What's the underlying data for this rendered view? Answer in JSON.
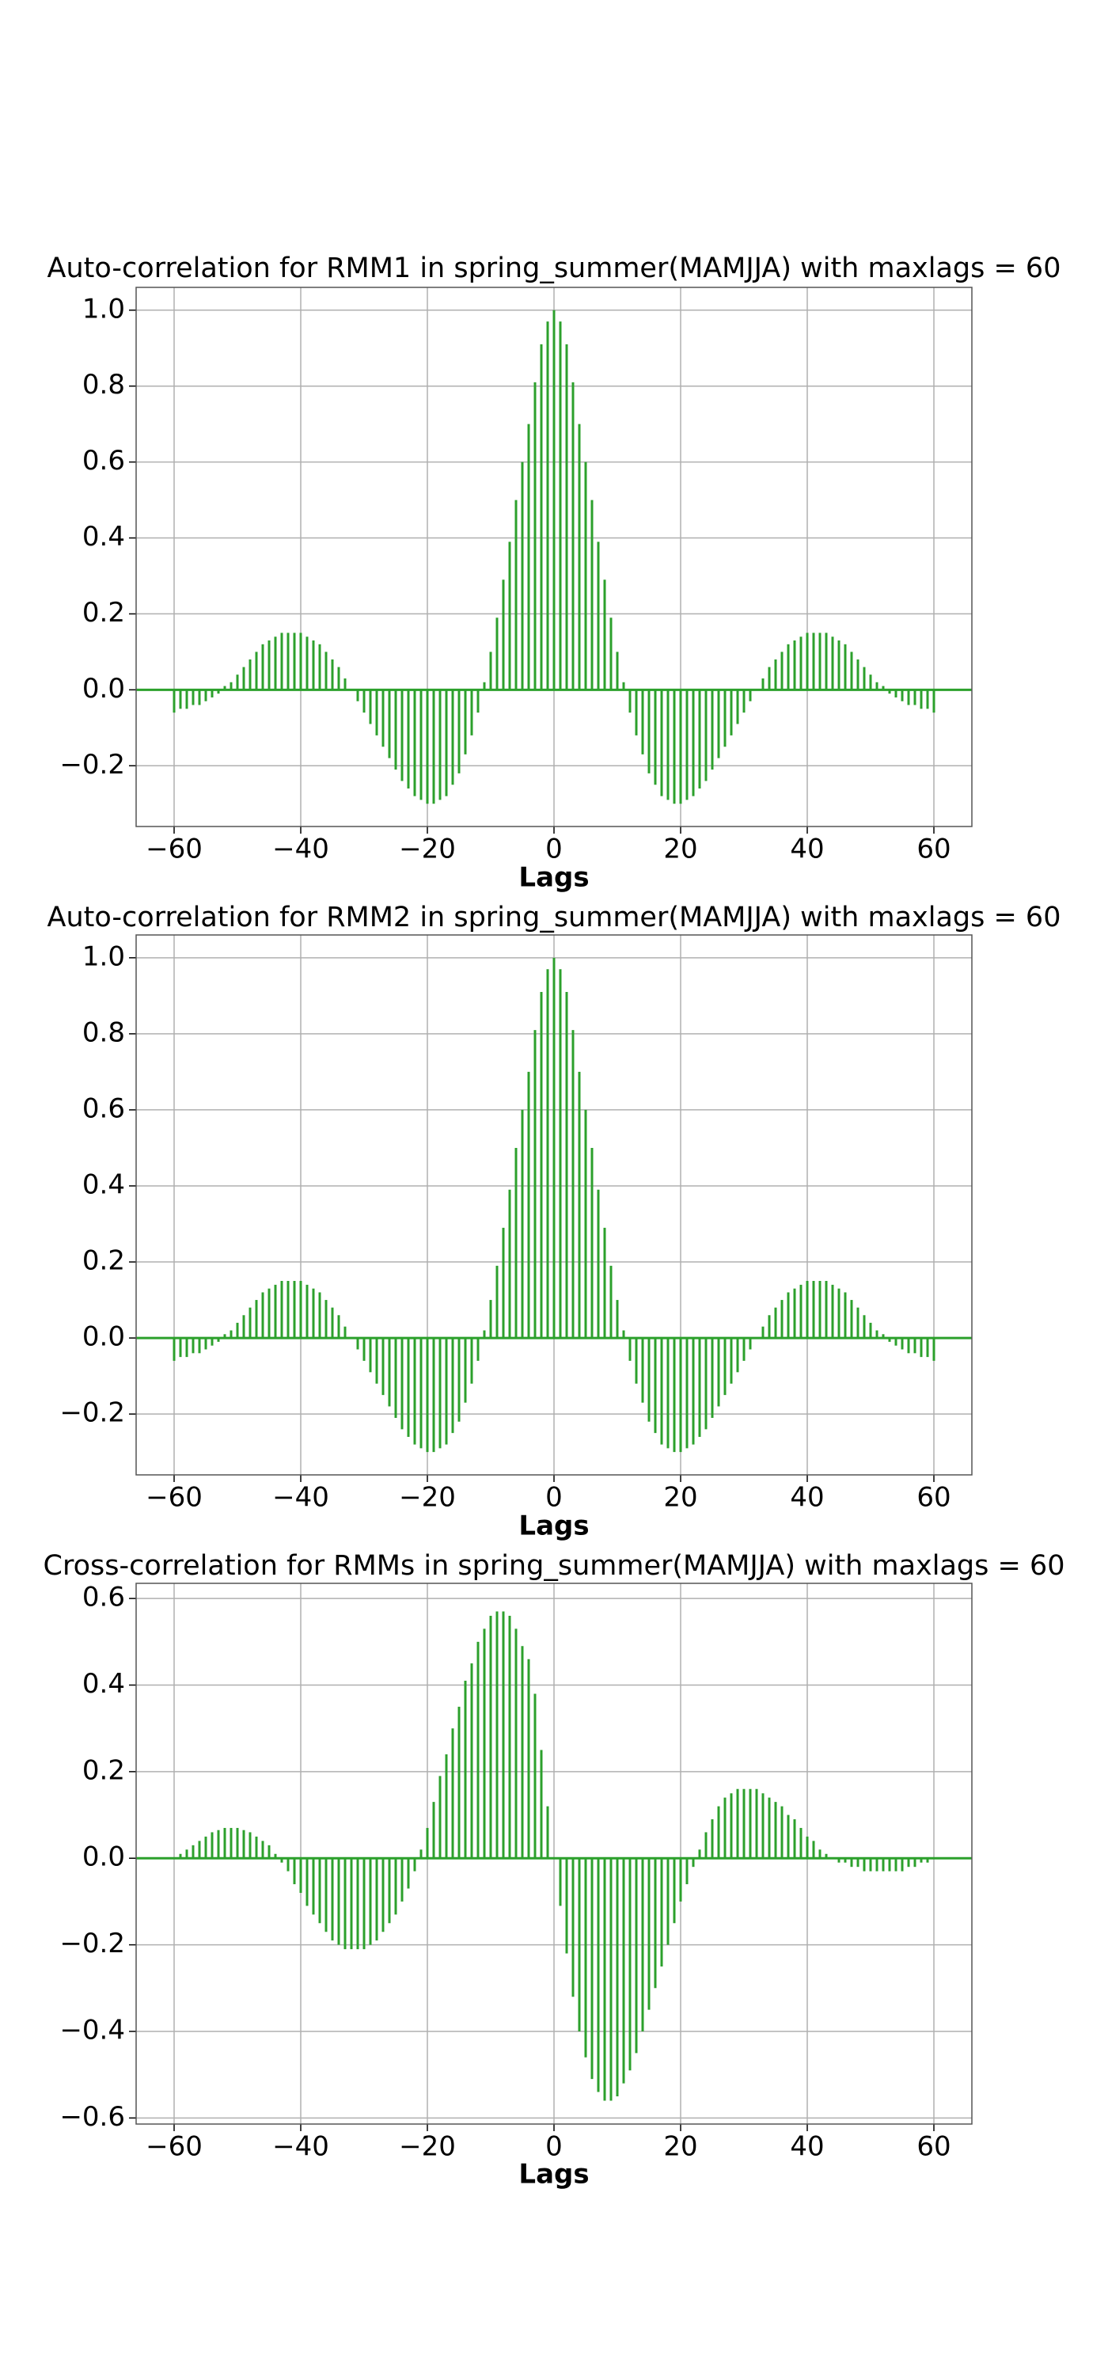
{
  "chart_data": [
    {
      "type": "stem",
      "title": "Auto-correlation for RMM1 in spring_summer(MAMJJA) with maxlags = 60",
      "xlabel": "Lags",
      "color": "#2ca02c",
      "grid": true,
      "xlim": [
        -66,
        66
      ],
      "ylim": [
        -0.36,
        1.06
      ],
      "xticks": [
        {
          "value": -60,
          "label": "−60"
        },
        {
          "value": -40,
          "label": "−40"
        },
        {
          "value": -20,
          "label": "−20"
        },
        0,
        20,
        40,
        60
      ],
      "yticks": [
        {
          "value": -0.2,
          "label": "−0.2"
        },
        {
          "value": 0,
          "label": "0.0"
        },
        0.2,
        0.4,
        0.6,
        0.8,
        {
          "value": 1,
          "label": "1.0"
        }
      ],
      "x": [
        -60,
        -59,
        -58,
        -57,
        -56,
        -55,
        -54,
        -53,
        -52,
        -51,
        -50,
        -49,
        -48,
        -47,
        -46,
        -45,
        -44,
        -43,
        -42,
        -41,
        -40,
        -39,
        -38,
        -37,
        -36,
        -35,
        -34,
        -33,
        -32,
        -31,
        -30,
        -29,
        -28,
        -27,
        -26,
        -25,
        -24,
        -23,
        -22,
        -21,
        -20,
        -19,
        -18,
        -17,
        -16,
        -15,
        -14,
        -13,
        -12,
        -11,
        -10,
        -9,
        -8,
        -7,
        -6,
        -5,
        -4,
        -3,
        -2,
        -1,
        0,
        1,
        2,
        3,
        4,
        5,
        6,
        7,
        8,
        9,
        10,
        11,
        12,
        13,
        14,
        15,
        16,
        17,
        18,
        19,
        20,
        21,
        22,
        23,
        24,
        25,
        26,
        27,
        28,
        29,
        30,
        31,
        32,
        33,
        34,
        35,
        36,
        37,
        38,
        39,
        40,
        41,
        42,
        43,
        44,
        45,
        46,
        47,
        48,
        49,
        50,
        51,
        52,
        53,
        54,
        55,
        56,
        57,
        58,
        59,
        60
      ],
      "values": [
        -0.06,
        -0.05,
        -0.05,
        -0.04,
        -0.04,
        -0.03,
        -0.02,
        -0.01,
        0.01,
        0.02,
        0.04,
        0.06,
        0.08,
        0.1,
        0.12,
        0.13,
        0.14,
        0.15,
        0.15,
        0.15,
        0.15,
        0.14,
        0.13,
        0.12,
        0.1,
        0.08,
        0.06,
        0.03,
        0.0,
        -0.03,
        -0.06,
        -0.09,
        -0.12,
        -0.15,
        -0.18,
        -0.21,
        -0.24,
        -0.26,
        -0.28,
        -0.29,
        -0.3,
        -0.3,
        -0.29,
        -0.28,
        -0.25,
        -0.22,
        -0.17,
        -0.12,
        -0.06,
        0.02,
        0.1,
        0.19,
        0.29,
        0.39,
        0.5,
        0.6,
        0.7,
        0.81,
        0.91,
        0.97,
        1.0,
        0.97,
        0.91,
        0.81,
        0.7,
        0.6,
        0.5,
        0.39,
        0.29,
        0.19,
        0.1,
        0.02,
        -0.06,
        -0.12,
        -0.17,
        -0.22,
        -0.25,
        -0.28,
        -0.29,
        -0.3,
        -0.3,
        -0.29,
        -0.28,
        -0.26,
        -0.24,
        -0.21,
        -0.18,
        -0.15,
        -0.12,
        -0.09,
        -0.06,
        -0.03,
        0.0,
        0.03,
        0.06,
        0.08,
        0.1,
        0.12,
        0.13,
        0.14,
        0.15,
        0.15,
        0.15,
        0.15,
        0.14,
        0.13,
        0.12,
        0.1,
        0.08,
        0.06,
        0.04,
        0.02,
        0.01,
        -0.01,
        -0.02,
        -0.03,
        -0.04,
        -0.04,
        -0.05,
        -0.05,
        -0.06
      ]
    },
    {
      "type": "stem",
      "title": "Auto-correlation for RMM2 in spring_summer(MAMJJA) with maxlags = 60",
      "xlabel": "Lags",
      "color": "#2ca02c",
      "grid": true,
      "xlim": [
        -66,
        66
      ],
      "ylim": [
        -0.36,
        1.06
      ],
      "xticks": [
        {
          "value": -60,
          "label": "−60"
        },
        {
          "value": -40,
          "label": "−40"
        },
        {
          "value": -20,
          "label": "−20"
        },
        0,
        20,
        40,
        60
      ],
      "yticks": [
        {
          "value": -0.2,
          "label": "−0.2"
        },
        {
          "value": 0,
          "label": "0.0"
        },
        0.2,
        0.4,
        0.6,
        0.8,
        {
          "value": 1,
          "label": "1.0"
        }
      ],
      "x": [
        -60,
        -59,
        -58,
        -57,
        -56,
        -55,
        -54,
        -53,
        -52,
        -51,
        -50,
        -49,
        -48,
        -47,
        -46,
        -45,
        -44,
        -43,
        -42,
        -41,
        -40,
        -39,
        -38,
        -37,
        -36,
        -35,
        -34,
        -33,
        -32,
        -31,
        -30,
        -29,
        -28,
        -27,
        -26,
        -25,
        -24,
        -23,
        -22,
        -21,
        -20,
        -19,
        -18,
        -17,
        -16,
        -15,
        -14,
        -13,
        -12,
        -11,
        -10,
        -9,
        -8,
        -7,
        -6,
        -5,
        -4,
        -3,
        -2,
        -1,
        0,
        1,
        2,
        3,
        4,
        5,
        6,
        7,
        8,
        9,
        10,
        11,
        12,
        13,
        14,
        15,
        16,
        17,
        18,
        19,
        20,
        21,
        22,
        23,
        24,
        25,
        26,
        27,
        28,
        29,
        30,
        31,
        32,
        33,
        34,
        35,
        36,
        37,
        38,
        39,
        40,
        41,
        42,
        43,
        44,
        45,
        46,
        47,
        48,
        49,
        50,
        51,
        52,
        53,
        54,
        55,
        56,
        57,
        58,
        59,
        60
      ],
      "values": [
        -0.06,
        -0.05,
        -0.05,
        -0.04,
        -0.04,
        -0.03,
        -0.02,
        -0.01,
        0.01,
        0.02,
        0.04,
        0.06,
        0.08,
        0.1,
        0.12,
        0.13,
        0.14,
        0.15,
        0.15,
        0.15,
        0.15,
        0.14,
        0.13,
        0.12,
        0.1,
        0.08,
        0.06,
        0.03,
        0.0,
        -0.03,
        -0.06,
        -0.09,
        -0.12,
        -0.15,
        -0.18,
        -0.21,
        -0.24,
        -0.26,
        -0.28,
        -0.29,
        -0.3,
        -0.3,
        -0.29,
        -0.28,
        -0.25,
        -0.22,
        -0.17,
        -0.12,
        -0.06,
        0.02,
        0.1,
        0.19,
        0.29,
        0.39,
        0.5,
        0.6,
        0.7,
        0.81,
        0.91,
        0.97,
        1.0,
        0.97,
        0.91,
        0.81,
        0.7,
        0.6,
        0.5,
        0.39,
        0.29,
        0.19,
        0.1,
        0.02,
        -0.06,
        -0.12,
        -0.17,
        -0.22,
        -0.25,
        -0.28,
        -0.29,
        -0.3,
        -0.3,
        -0.29,
        -0.28,
        -0.26,
        -0.24,
        -0.21,
        -0.18,
        -0.15,
        -0.12,
        -0.09,
        -0.06,
        -0.03,
        0.0,
        0.03,
        0.06,
        0.08,
        0.1,
        0.12,
        0.13,
        0.14,
        0.15,
        0.15,
        0.15,
        0.15,
        0.14,
        0.13,
        0.12,
        0.1,
        0.08,
        0.06,
        0.04,
        0.02,
        0.01,
        -0.01,
        -0.02,
        -0.03,
        -0.04,
        -0.04,
        -0.05,
        -0.05,
        -0.06
      ]
    },
    {
      "type": "stem",
      "title": "Cross-correlation for RMMs in spring_summer(MAMJJA) with maxlags = 60",
      "xlabel": "Lags",
      "color": "#2ca02c",
      "grid": true,
      "xlim": [
        -66,
        66
      ],
      "ylim": [
        -0.614,
        0.635
      ],
      "xticks": [
        {
          "value": -60,
          "label": "−60"
        },
        {
          "value": -40,
          "label": "−40"
        },
        {
          "value": -20,
          "label": "−20"
        },
        0,
        20,
        40,
        60
      ],
      "yticks": [
        {
          "value": -0.6,
          "label": "−0.6"
        },
        {
          "value": -0.4,
          "label": "−0.4"
        },
        {
          "value": -0.2,
          "label": "−0.2"
        },
        {
          "value": 0,
          "label": "0.0"
        },
        0.2,
        0.4,
        0.6
      ],
      "x": [
        -60,
        -59,
        -58,
        -57,
        -56,
        -55,
        -54,
        -53,
        -52,
        -51,
        -50,
        -49,
        -48,
        -47,
        -46,
        -45,
        -44,
        -43,
        -42,
        -41,
        -40,
        -39,
        -38,
        -37,
        -36,
        -35,
        -34,
        -33,
        -32,
        -31,
        -30,
        -29,
        -28,
        -27,
        -26,
        -25,
        -24,
        -23,
        -22,
        -21,
        -20,
        -19,
        -18,
        -17,
        -16,
        -15,
        -14,
        -13,
        -12,
        -11,
        -10,
        -9,
        -8,
        -7,
        -6,
        -5,
        -4,
        -3,
        -2,
        -1,
        0,
        1,
        2,
        3,
        4,
        5,
        6,
        7,
        8,
        9,
        10,
        11,
        12,
        13,
        14,
        15,
        16,
        17,
        18,
        19,
        20,
        21,
        22,
        23,
        24,
        25,
        26,
        27,
        28,
        29,
        30,
        31,
        32,
        33,
        34,
        35,
        36,
        37,
        38,
        39,
        40,
        41,
        42,
        43,
        44,
        45,
        46,
        47,
        48,
        49,
        50,
        51,
        52,
        53,
        54,
        55,
        56,
        57,
        58,
        59,
        60
      ],
      "values": [
        0.0,
        0.01,
        0.02,
        0.03,
        0.04,
        0.05,
        0.06,
        0.065,
        0.07,
        0.07,
        0.07,
        0.065,
        0.06,
        0.05,
        0.04,
        0.03,
        0.01,
        -0.01,
        -0.03,
        -0.06,
        -0.08,
        -0.11,
        -0.13,
        -0.15,
        -0.17,
        -0.19,
        -0.2,
        -0.21,
        -0.21,
        -0.21,
        -0.21,
        -0.2,
        -0.19,
        -0.17,
        -0.15,
        -0.13,
        -0.1,
        -0.07,
        -0.03,
        0.02,
        0.07,
        0.13,
        0.19,
        0.24,
        0.3,
        0.35,
        0.41,
        0.45,
        0.5,
        0.53,
        0.56,
        0.57,
        0.57,
        0.56,
        0.53,
        0.49,
        0.46,
        0.38,
        0.25,
        0.12,
        0.0,
        -0.11,
        -0.22,
        -0.32,
        -0.4,
        -0.46,
        -0.51,
        -0.54,
        -0.56,
        -0.56,
        -0.55,
        -0.52,
        -0.49,
        -0.45,
        -0.4,
        -0.35,
        -0.3,
        -0.25,
        -0.2,
        -0.15,
        -0.1,
        -0.06,
        -0.02,
        0.02,
        0.06,
        0.09,
        0.12,
        0.14,
        0.15,
        0.16,
        0.16,
        0.16,
        0.16,
        0.15,
        0.14,
        0.13,
        0.12,
        0.1,
        0.09,
        0.07,
        0.05,
        0.04,
        0.02,
        0.01,
        0.0,
        -0.01,
        -0.01,
        -0.02,
        -0.02,
        -0.03,
        -0.03,
        -0.03,
        -0.03,
        -0.03,
        -0.03,
        -0.03,
        -0.02,
        -0.02,
        -0.01,
        -0.01,
        0.0
      ]
    }
  ]
}
